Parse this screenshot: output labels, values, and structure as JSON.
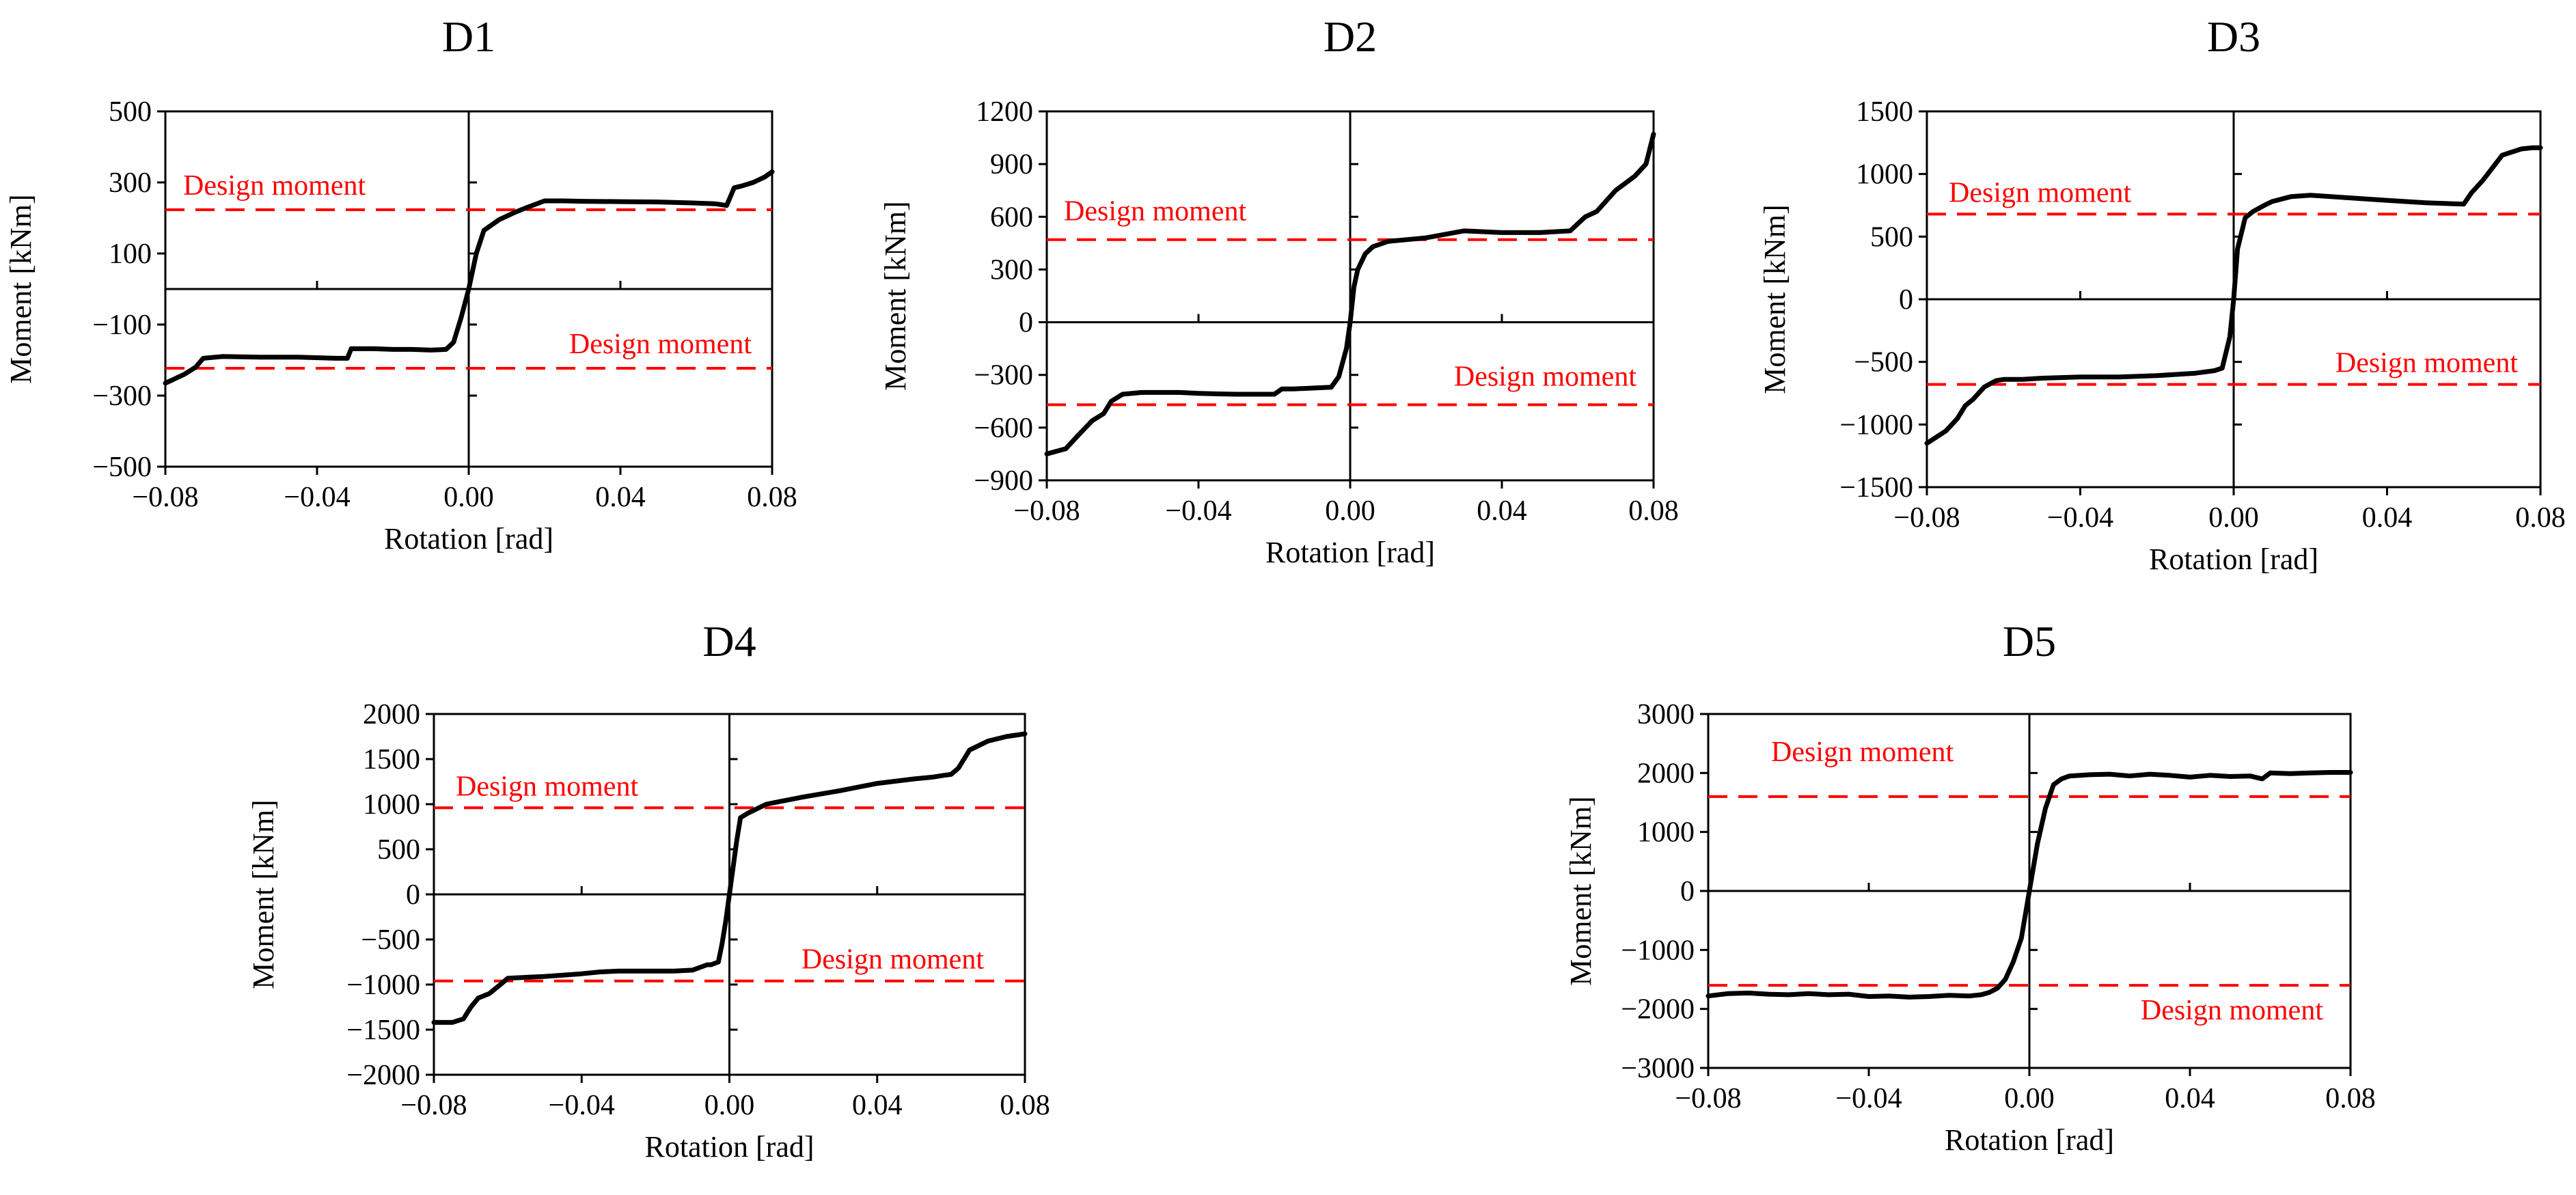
{
  "colors": {
    "curve": "#000000",
    "design": "#ff0000",
    "axis": "#000000"
  },
  "chart_data": [
    {
      "type": "line",
      "title": "D1",
      "xlabel": "Rotation [rad]",
      "ylabel": "Moment [kNm]",
      "xlim": [
        -0.08,
        0.08
      ],
      "ylim": [
        -500,
        500
      ],
      "xticks": [
        -0.08,
        -0.04,
        0,
        0.04,
        0.08
      ],
      "xtick_labels": [
        "−0.08",
        "−0.04",
        "0.00",
        "0.04",
        "0.08"
      ],
      "yticks": [
        500,
        300,
        100,
        -100,
        -300,
        -500
      ],
      "ytick_labels": [
        "500",
        "300",
        "100",
        "−100",
        "−300",
        "−500"
      ],
      "design_moment": 223,
      "design_label": "Design moment",
      "series": [
        {
          "x": [
            -0.08,
            -0.075,
            -0.072,
            -0.07,
            -0.065,
            -0.055,
            -0.045,
            -0.035,
            -0.032,
            -0.031,
            -0.025,
            -0.02,
            -0.015,
            -0.01,
            -0.006,
            -0.004,
            -0.002,
            0.0,
            0.002,
            0.004,
            0.006,
            0.008,
            0.01,
            0.012,
            0.015,
            0.02,
            0.025,
            0.03,
            0.04,
            0.05,
            0.06,
            0.065,
            0.068,
            0.069,
            0.07,
            0.072,
            0.075,
            0.078,
            0.08
          ],
          "y": [
            -265,
            -240,
            -220,
            -195,
            -190,
            -192,
            -192,
            -195,
            -195,
            -168,
            -168,
            -170,
            -170,
            -172,
            -170,
            -150,
            -80,
            0,
            100,
            165,
            180,
            195,
            205,
            215,
            228,
            248,
            248,
            247,
            246,
            245,
            242,
            240,
            235,
            260,
            285,
            290,
            300,
            315,
            330
          ]
        }
      ]
    },
    {
      "type": "line",
      "title": "D2",
      "xlabel": "Rotation [rad]",
      "ylabel": "Moment [kNm]",
      "xlim": [
        -0.08,
        0.08
      ],
      "ylim": [
        -900,
        1200
      ],
      "xticks": [
        -0.08,
        -0.04,
        0,
        0.04,
        0.08
      ],
      "xtick_labels": [
        "−0.08",
        "−0.04",
        "0.00",
        "0.04",
        "0.08"
      ],
      "yticks": [
        1200,
        900,
        600,
        300,
        0,
        -300,
        -600,
        -900
      ],
      "ytick_labels": [
        "1200",
        "900",
        "600",
        "300",
        "0",
        "−300",
        "−600",
        "−900"
      ],
      "design_moment": 470,
      "design_label": "Design moment",
      "series": [
        {
          "x": [
            -0.08,
            -0.075,
            -0.072,
            -0.068,
            -0.065,
            -0.063,
            -0.06,
            -0.055,
            -0.05,
            -0.045,
            -0.04,
            -0.035,
            -0.03,
            -0.025,
            -0.02,
            -0.018,
            -0.015,
            -0.01,
            -0.005,
            -0.003,
            -0.001,
            0.0,
            0.001,
            0.002,
            0.004,
            0.006,
            0.01,
            0.015,
            0.02,
            0.03,
            0.04,
            0.05,
            0.058,
            0.06,
            0.062,
            0.065,
            0.07,
            0.075,
            0.078,
            0.08
          ],
          "y": [
            -750,
            -720,
            -650,
            -560,
            -520,
            -450,
            -410,
            -400,
            -400,
            -400,
            -405,
            -408,
            -410,
            -410,
            -410,
            -380,
            -380,
            -375,
            -370,
            -310,
            -150,
            0,
            200,
            300,
            390,
            430,
            460,
            470,
            480,
            520,
            510,
            510,
            520,
            560,
            600,
            630,
            750,
            830,
            900,
            1070
          ]
        }
      ]
    },
    {
      "type": "line",
      "title": "D3",
      "xlabel": "Rotation [rad]",
      "ylabel": "Moment [kNm]",
      "xlim": [
        -0.08,
        0.08
      ],
      "ylim": [
        -1500,
        1500
      ],
      "xticks": [
        -0.08,
        -0.04,
        0,
        0.04,
        0.08
      ],
      "xtick_labels": [
        "−0.08",
        "−0.04",
        "0.00",
        "0.04",
        "0.08"
      ],
      "yticks": [
        1500,
        1000,
        500,
        0,
        -500,
        -1000,
        -1500
      ],
      "ytick_labels": [
        "1500",
        "1000",
        "500",
        "0",
        "−500",
        "−1000",
        "−1500"
      ],
      "design_moment": 680,
      "design_label": "Design moment",
      "series": [
        {
          "x": [
            -0.08,
            -0.075,
            -0.072,
            -0.07,
            -0.068,
            -0.065,
            -0.062,
            -0.06,
            -0.055,
            -0.05,
            -0.04,
            -0.03,
            -0.02,
            -0.01,
            -0.005,
            -0.003,
            -0.001,
            0.0,
            0.001,
            0.003,
            0.005,
            0.008,
            0.01,
            0.015,
            0.02,
            0.03,
            0.04,
            0.05,
            0.06,
            0.062,
            0.065,
            0.07,
            0.075,
            0.078,
            0.08
          ],
          "y": [
            -1150,
            -1050,
            -950,
            -850,
            -800,
            -700,
            -650,
            -640,
            -640,
            -630,
            -620,
            -620,
            -610,
            -590,
            -570,
            -550,
            -300,
            0,
            400,
            650,
            700,
            750,
            780,
            820,
            830,
            810,
            790,
            770,
            760,
            850,
            950,
            1150,
            1200,
            1210,
            1210
          ]
        }
      ]
    },
    {
      "type": "line",
      "title": "D4",
      "xlabel": "Rotation [rad]",
      "ylabel": "Moment [kNm]",
      "xlim": [
        -0.08,
        0.08
      ],
      "ylim": [
        -2000,
        2000
      ],
      "xticks": [
        -0.08,
        -0.04,
        0,
        0.04,
        0.08
      ],
      "xtick_labels": [
        "−0.08",
        "−0.04",
        "0.00",
        "0.04",
        "0.08"
      ],
      "yticks": [
        2000,
        1500,
        1000,
        500,
        0,
        -500,
        -1000,
        -1500,
        -2000
      ],
      "ytick_labels": [
        "2000",
        "1500",
        "1000",
        "500",
        "0",
        "−500",
        "−1000",
        "−1500",
        "−2000"
      ],
      "design_moment": 960,
      "design_label": "Design moment",
      "series": [
        {
          "x": [
            -0.08,
            -0.075,
            -0.072,
            -0.07,
            -0.068,
            -0.065,
            -0.062,
            -0.06,
            -0.055,
            -0.05,
            -0.04,
            -0.035,
            -0.03,
            -0.02,
            -0.015,
            -0.01,
            -0.006,
            -0.005,
            -0.003,
            -0.002,
            -0.001,
            0.0,
            0.001,
            0.002,
            0.003,
            0.005,
            0.01,
            0.02,
            0.03,
            0.04,
            0.05,
            0.055,
            0.058,
            0.06,
            0.062,
            0.065,
            0.07,
            0.075,
            0.08
          ],
          "y": [
            -1420,
            -1420,
            -1380,
            -1250,
            -1150,
            -1100,
            -1000,
            -930,
            -920,
            -910,
            -880,
            -860,
            -850,
            -850,
            -850,
            -840,
            -780,
            -780,
            -750,
            -550,
            -300,
            0,
            300,
            600,
            850,
            900,
            1000,
            1080,
            1150,
            1230,
            1280,
            1300,
            1320,
            1330,
            1400,
            1600,
            1700,
            1750,
            1780
          ]
        }
      ]
    },
    {
      "type": "line",
      "title": "D5",
      "xlabel": "Rotation [rad]",
      "ylabel": "Moment [kNm]",
      "xlim": [
        -0.08,
        0.08
      ],
      "ylim": [
        -3000,
        3000
      ],
      "xticks": [
        -0.08,
        -0.04,
        0,
        0.04,
        0.08
      ],
      "xtick_labels": [
        "−0.08",
        "−0.04",
        "0.00",
        "0.04",
        "0.08"
      ],
      "yticks": [
        3000,
        2000,
        1000,
        0,
        -1000,
        -2000,
        -3000
      ],
      "ytick_labels": [
        "3000",
        "2000",
        "1000",
        "0",
        "−1000",
        "−2000",
        "−3000"
      ],
      "design_moment": 1600,
      "design_label": "Design moment",
      "series": [
        {
          "x": [
            -0.08,
            -0.075,
            -0.07,
            -0.065,
            -0.06,
            -0.055,
            -0.05,
            -0.045,
            -0.04,
            -0.035,
            -0.03,
            -0.025,
            -0.02,
            -0.015,
            -0.012,
            -0.01,
            -0.008,
            -0.006,
            -0.004,
            -0.002,
            0.0,
            0.002,
            0.004,
            0.006,
            0.008,
            0.01,
            0.015,
            0.02,
            0.025,
            0.03,
            0.035,
            0.04,
            0.045,
            0.05,
            0.055,
            0.058,
            0.06,
            0.065,
            0.07,
            0.075,
            0.08
          ],
          "y": [
            -1780,
            -1740,
            -1730,
            -1750,
            -1760,
            -1740,
            -1760,
            -1750,
            -1790,
            -1780,
            -1800,
            -1790,
            -1770,
            -1780,
            -1760,
            -1720,
            -1650,
            -1500,
            -1200,
            -800,
            0,
            800,
            1400,
            1800,
            1900,
            1950,
            1970,
            1980,
            1950,
            1980,
            1960,
            1930,
            1960,
            1940,
            1950,
            1900,
            2000,
            1990,
            2000,
            2010,
            2010
          ]
        }
      ]
    }
  ]
}
